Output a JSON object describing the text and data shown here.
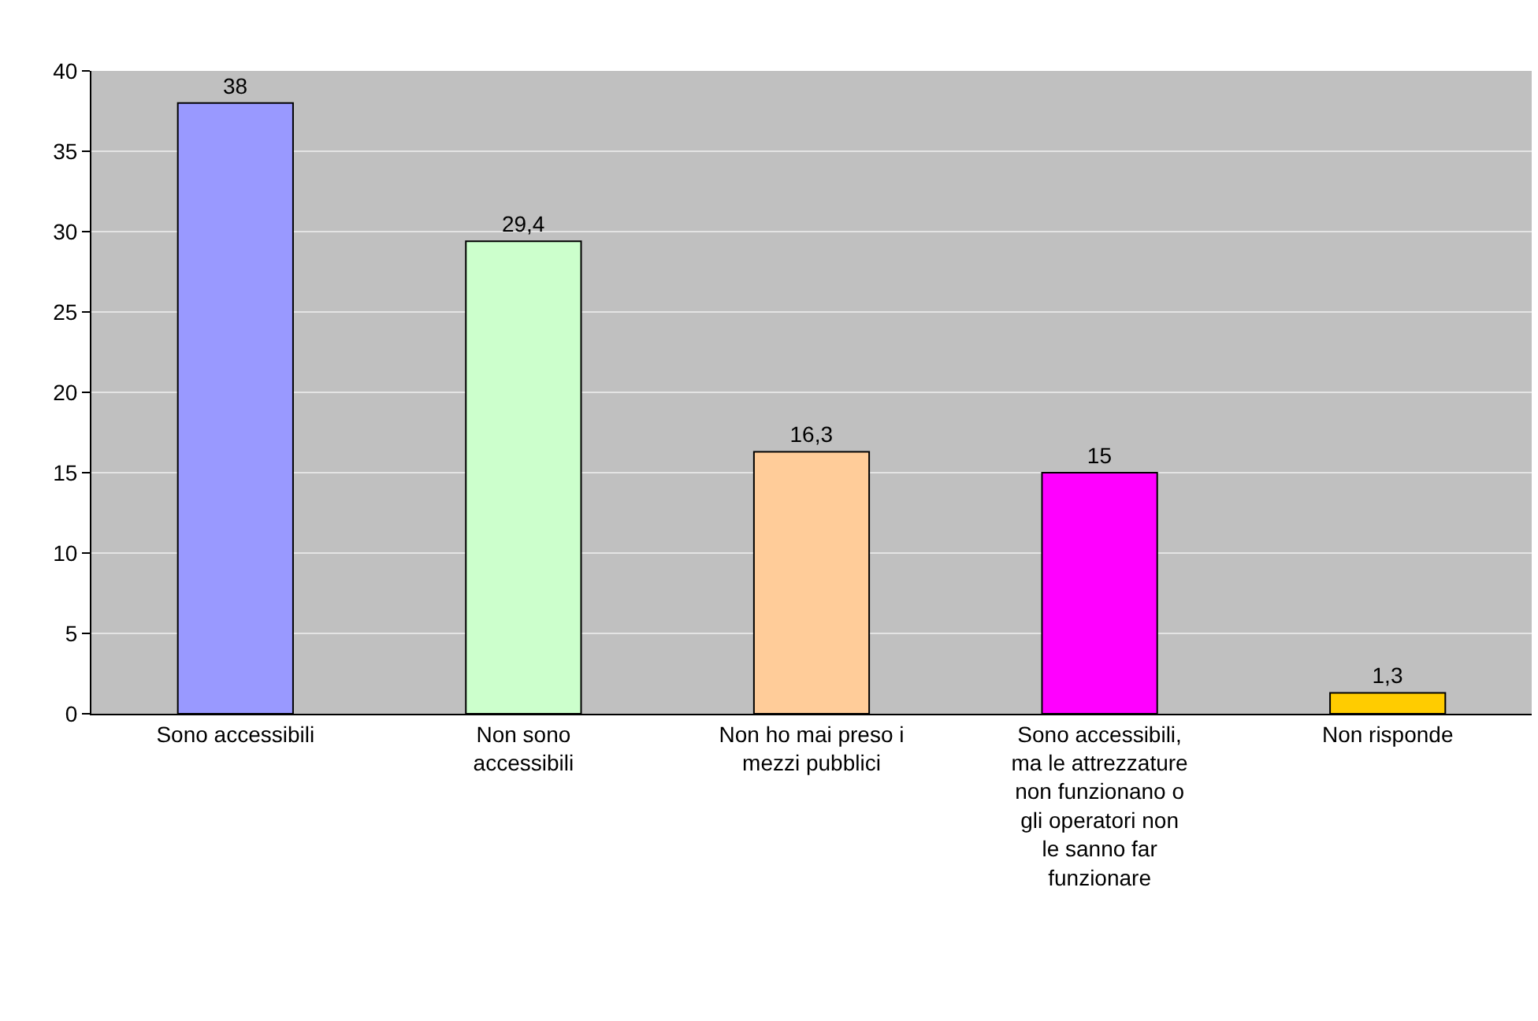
{
  "chart_data": {
    "type": "bar",
    "categories": [
      "Sono accessibili",
      "Non sono accessibili",
      "Non ho mai preso i mezzi pubblici",
      "Sono accessibili, ma le attrezzature non funzionano o gli operatori non le sanno far funzionare",
      "Non risponde"
    ],
    "values": [
      38,
      29.4,
      16.3,
      15,
      1.3
    ],
    "value_labels": [
      "38",
      "29,4",
      "16,3",
      "15",
      "1,3"
    ],
    "colors": [
      "#9999ff",
      "#ccffcc",
      "#ffcc99",
      "#ff00ff",
      "#ffcc00"
    ],
    "ylim": [
      0,
      40
    ],
    "yticks": [
      0,
      5,
      10,
      15,
      20,
      25,
      30,
      35,
      40
    ],
    "grid": "y",
    "legend": false
  }
}
